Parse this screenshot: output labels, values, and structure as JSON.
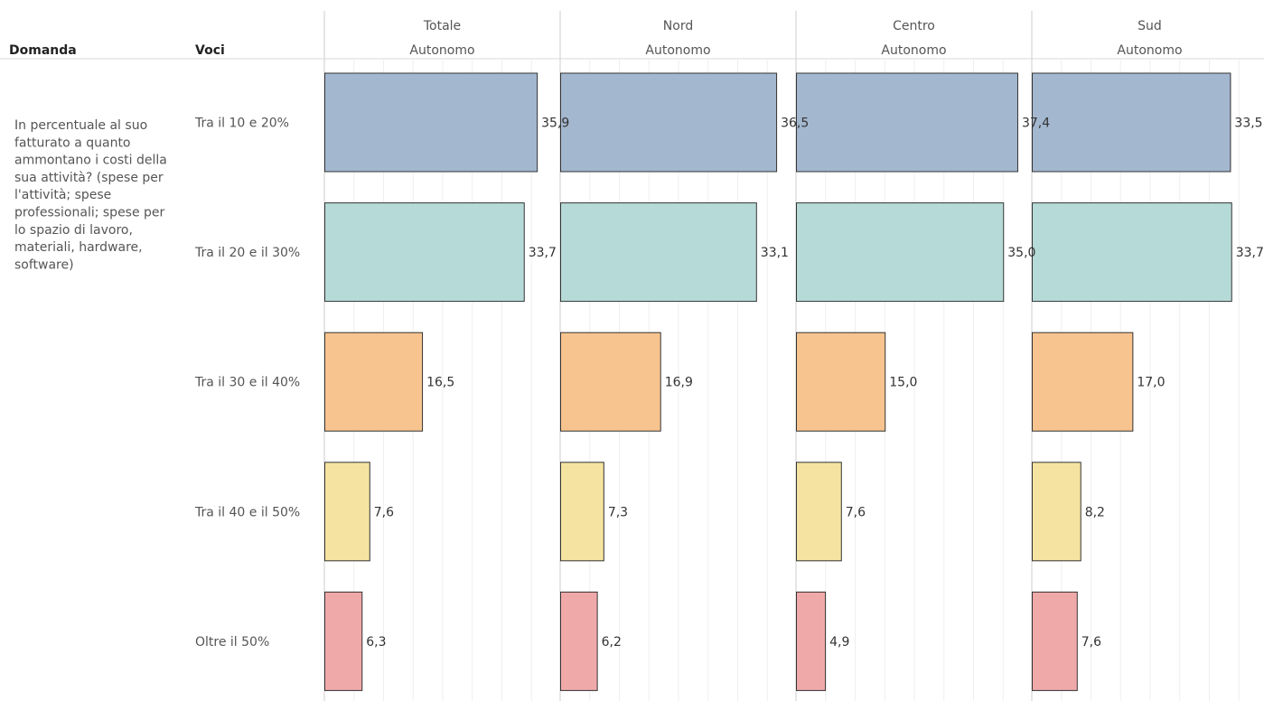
{
  "headers": {
    "question": "Domanda",
    "items": "Voci"
  },
  "question_lines": [
    "In percentuale al suo",
    "fatturato a quanto",
    "ammontano i costi della",
    "sua attività? (spese per",
    "l'attività; spese",
    "professionali; spese per",
    "lo spazio di lavoro,",
    "materiali, hardware,",
    "software)"
  ],
  "chart_data": {
    "type": "bar",
    "orientation": "horizontal",
    "categories": [
      "Tra il 10 e 20%",
      "Tra il 20 e il 30%",
      "Tra il 30 e il 40%",
      "Tra il 40 e il 50%",
      "Oltre il 50%"
    ],
    "category_colors": [
      "#a3b7cf",
      "#b6dad8",
      "#f7c48f",
      "#f5e4a1",
      "#f0a9a9"
    ],
    "xlim": [
      0,
      40
    ],
    "grid": true,
    "panels": [
      {
        "title_line1": "Totale",
        "title_line2": "Autonomo",
        "values": [
          35.9,
          33.7,
          16.5,
          7.6,
          6.3
        ],
        "labels": [
          "35,9",
          "33,7",
          "16,5",
          "7,6",
          "6,3"
        ]
      },
      {
        "title_line1": "Nord",
        "title_line2": "Autonomo",
        "values": [
          36.5,
          33.1,
          16.9,
          7.3,
          6.2
        ],
        "labels": [
          "36,5",
          "33,1",
          "16,9",
          "7,3",
          "6,2"
        ]
      },
      {
        "title_line1": "Centro",
        "title_line2": "Autonomo",
        "values": [
          37.4,
          35.0,
          15.0,
          7.6,
          4.9
        ],
        "labels": [
          "37,4",
          "35,0",
          "15,0",
          "7,6",
          "4,9"
        ]
      },
      {
        "title_line1": "Sud",
        "title_line2": "Autonomo",
        "values": [
          33.5,
          33.7,
          17.0,
          8.2,
          7.6
        ],
        "labels": [
          "33,5",
          "33,7",
          "17,0",
          "8,2",
          "7,6"
        ]
      }
    ]
  }
}
